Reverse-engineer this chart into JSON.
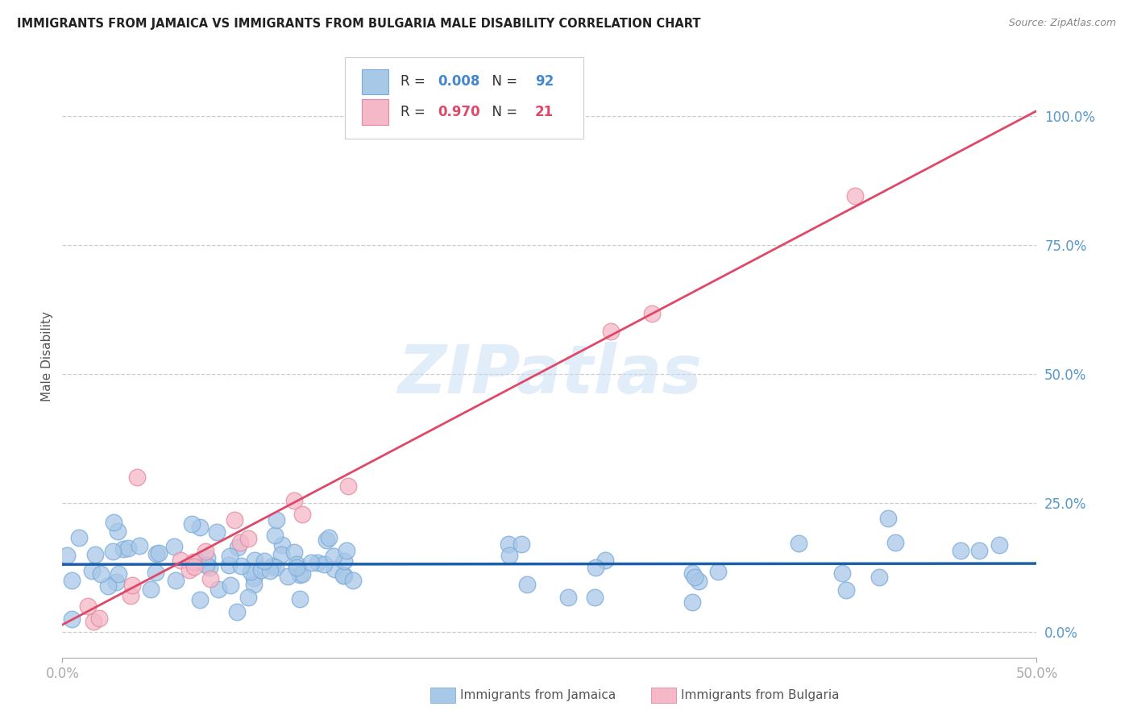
{
  "title": "IMMIGRANTS FROM JAMAICA VS IMMIGRANTS FROM BULGARIA MALE DISABILITY CORRELATION CHART",
  "source": "Source: ZipAtlas.com",
  "ylabel": "Male Disability",
  "xlim": [
    0.0,
    0.5
  ],
  "ylim": [
    -0.05,
    1.12
  ],
  "yticks": [
    0.0,
    0.25,
    0.5,
    0.75,
    1.0
  ],
  "ytick_labels": [
    "0.0%",
    "25.0%",
    "50.0%",
    "75.0%",
    "100.0%"
  ],
  "xtick_labels": [
    "0.0%",
    "50.0%"
  ],
  "xtick_positions": [
    0.0,
    0.5
  ],
  "jamaica_color": "#a8c8e8",
  "jamaica_edge_color": "#7aabda",
  "bulgaria_color": "#f4b8c8",
  "bulgaria_edge_color": "#e888a0",
  "jamaica_R": 0.008,
  "jamaica_N": 92,
  "bulgaria_R": 0.97,
  "bulgaria_N": 21,
  "regression_line_blue_color": "#1a5fa8",
  "regression_line_pink_color": "#e04868",
  "watermark": "ZIPatlas",
  "grid_color": "#cccccc",
  "spine_color": "#aaaaaa",
  "tick_color": "#5599cc",
  "title_color": "#222222",
  "source_color": "#888888",
  "ylabel_color": "#555555",
  "legend_label_color": "#333333",
  "legend_r_color_jamaica": "#4488cc",
  "legend_r_color_bulgaria": "#e04868",
  "bottom_legend_color": "#555555"
}
